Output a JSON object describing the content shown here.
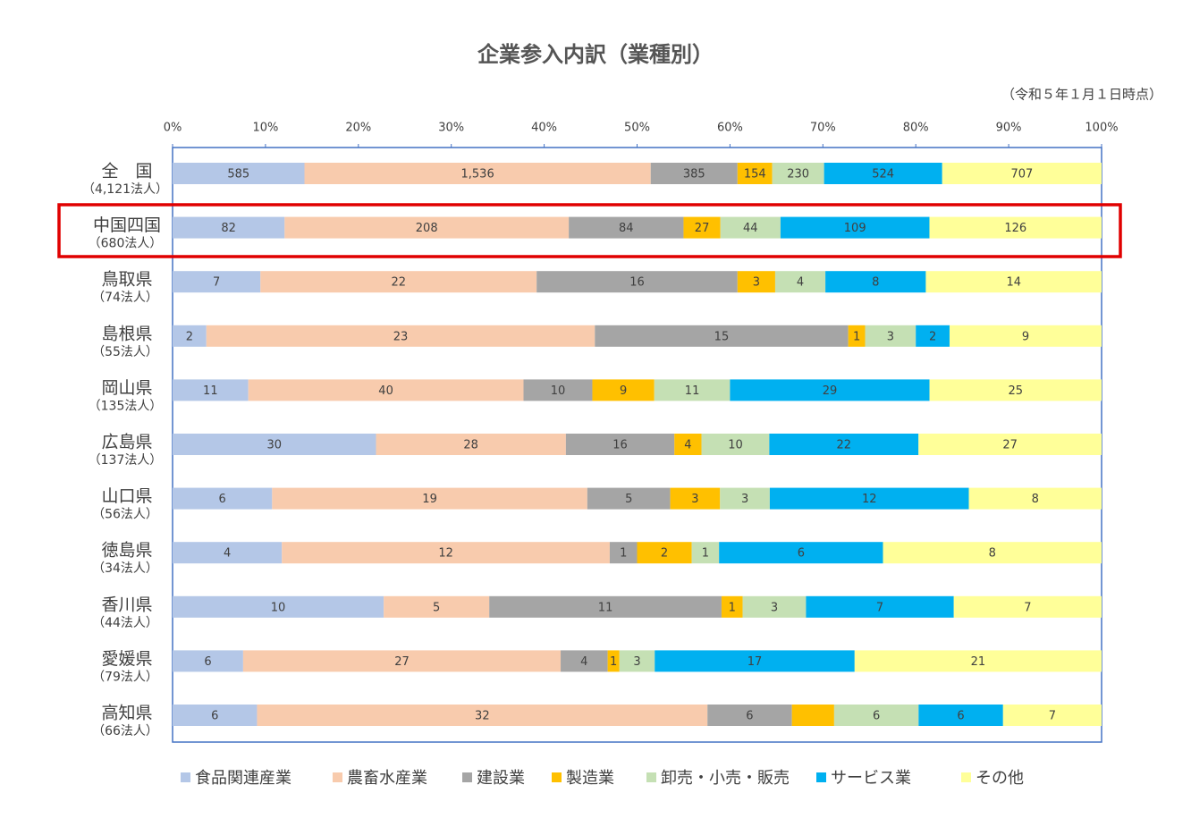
{
  "chart_data": {
    "type": "stacked-percent-bar",
    "title": "企業参入内訳（業種別）",
    "subtitle": "（令和５年１月１日時点）",
    "categories": [
      "全　国",
      "中国四国",
      "鳥取県",
      "島根県",
      "岡山県",
      "広島県",
      "山口県",
      "徳島県",
      "香川県",
      "愛媛県",
      "高知県"
    ],
    "category_sublabels": [
      "（4,121法人）",
      "（680法人）",
      "（74法人）",
      "（55法人）",
      "（135法人）",
      "（137法人）",
      "（56法人）",
      "（34法人）",
      "（44法人）",
      "（79法人）",
      "（66法人）"
    ],
    "xlim": [
      0,
      100
    ],
    "xticks": [
      {
        "value": 0,
        "label": "0%"
      },
      {
        "value": 10,
        "label": "10%"
      },
      {
        "value": 20,
        "label": "20%"
      },
      {
        "value": 30,
        "label": "30%"
      },
      {
        "value": 40,
        "label": "40%"
      },
      {
        "value": 50,
        "label": "50%"
      },
      {
        "value": 60,
        "label": "60%"
      },
      {
        "value": 70,
        "label": "70%"
      },
      {
        "value": 80,
        "label": "80%"
      },
      {
        "value": 90,
        "label": "90%"
      },
      {
        "value": 100,
        "label": "100%"
      }
    ],
    "series": [
      {
        "name": "食品関連産業",
        "color": "#b4c7e7",
        "values": [
          585,
          82,
          7,
          2,
          11,
          30,
          6,
          4,
          10,
          6,
          6
        ]
      },
      {
        "name": "農畜水産業",
        "color": "#f8cbad",
        "values": [
          1536,
          208,
          22,
          23,
          40,
          28,
          19,
          12,
          5,
          27,
          32
        ],
        "value_labels": [
          "1,536",
          "208",
          "22",
          "23",
          "40",
          "28",
          "19",
          "12",
          "5",
          "27",
          "32"
        ]
      },
      {
        "name": "建設業",
        "color": "#a5a5a5",
        "values": [
          385,
          84,
          16,
          15,
          10,
          16,
          5,
          1,
          11,
          4,
          6
        ]
      },
      {
        "name": "製造業",
        "color": "#ffc000",
        "values": [
          154,
          27,
          3,
          1,
          9,
          4,
          3,
          2,
          1,
          1,
          3
        ],
        "value_labels": [
          "154",
          "27",
          "3",
          "1",
          "9",
          "4",
          "3",
          "2",
          "1",
          "1",
          null
        ]
      },
      {
        "name": "卸売・小売・販売",
        "color": "#c5e0b4",
        "values": [
          230,
          44,
          4,
          3,
          11,
          10,
          3,
          1,
          3,
          3,
          6
        ]
      },
      {
        "name": "サービス業",
        "color": "#00b0f0",
        "values": [
          524,
          109,
          8,
          2,
          29,
          22,
          12,
          6,
          7,
          17,
          6
        ]
      },
      {
        "name": "その他",
        "color": "#ffff99",
        "values": [
          707,
          126,
          14,
          9,
          25,
          27,
          8,
          8,
          7,
          21,
          7
        ]
      }
    ]
  }
}
